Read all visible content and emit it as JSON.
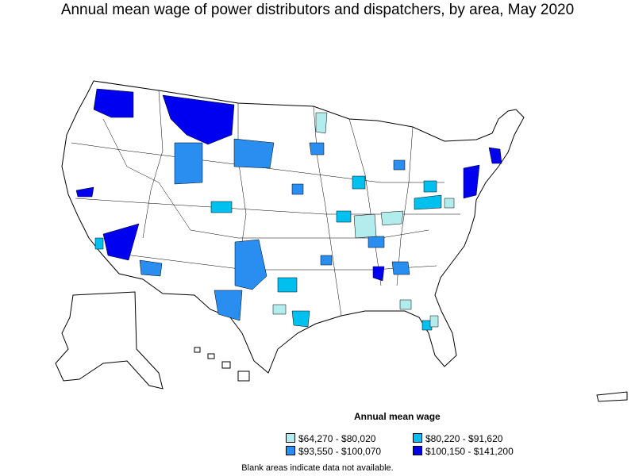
{
  "title": "Annual mean wage of power distributors and dispatchers, by area, May 2020",
  "legend": {
    "title": "Annual mean wage",
    "items": [
      {
        "label": "$64,270 - $80,020",
        "color": "#b3ecec"
      },
      {
        "label": "$80,220 - $91,620",
        "color": "#00c0f0"
      },
      {
        "label": "$93,550 - $100,070",
        "color": "#2a8df0"
      },
      {
        "label": "$100,150 - $141,200",
        "color": "#0000f0"
      }
    ]
  },
  "note": "Blank areas indicate data not available.",
  "colors": {
    "outline": "#000000",
    "blank": "#ffffff",
    "tier1": "#b3ecec",
    "tier2": "#00c0f0",
    "tier3": "#2a8df0",
    "tier4": "#0000f0"
  }
}
